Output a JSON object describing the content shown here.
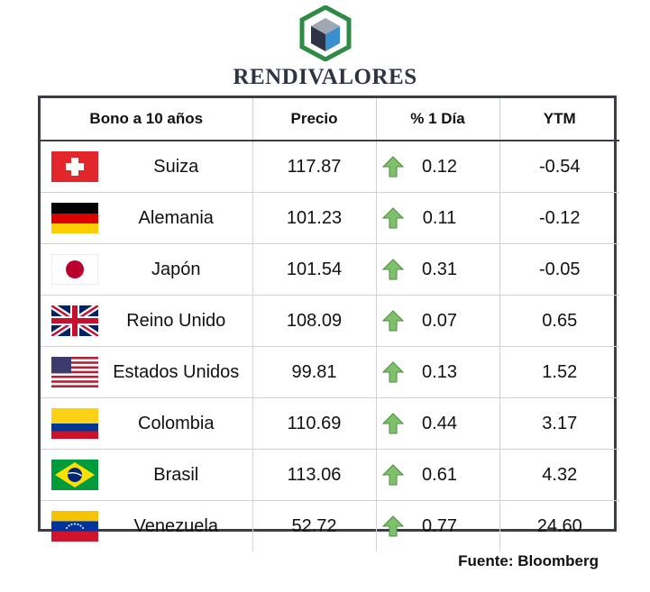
{
  "brand": {
    "name": "RENDIVALORES",
    "logo_icon": "cube-hexagon-logo"
  },
  "table": {
    "headers": [
      "Bono a 10 años",
      "Precio",
      "% 1 Día",
      "YTM"
    ],
    "rows": [
      {
        "country": "Suiza",
        "flag": "switzerland-flag-icon",
        "price": "117.87",
        "change": "0.12",
        "direction": "up",
        "ytm": "-0.54"
      },
      {
        "country": "Alemania",
        "flag": "germany-flag-icon",
        "price": "101.23",
        "change": "0.11",
        "direction": "up",
        "ytm": "-0.12"
      },
      {
        "country": "Japón",
        "flag": "japan-flag-icon",
        "price": "101.54",
        "change": "0.31",
        "direction": "up",
        "ytm": "-0.05"
      },
      {
        "country": "Reino Unido",
        "flag": "united-kingdom-flag-icon",
        "price": "108.09",
        "change": "0.07",
        "direction": "up",
        "ytm": "0.65"
      },
      {
        "country": "Estados Unidos",
        "flag": "united-states-flag-icon",
        "price": "99.81",
        "change": "0.13",
        "direction": "up",
        "ytm": "1.52"
      },
      {
        "country": "Colombia",
        "flag": "colombia-flag-icon",
        "price": "110.69",
        "change": "0.44",
        "direction": "up",
        "ytm": "3.17"
      },
      {
        "country": "Brasil",
        "flag": "brazil-flag-icon",
        "price": "113.06",
        "change": "0.61",
        "direction": "up",
        "ytm": "4.32"
      },
      {
        "country": "Venezuela",
        "flag": "venezuela-flag-icon",
        "price": "52.72",
        "change": "0.77",
        "direction": "up",
        "ytm": "24.60"
      }
    ]
  },
  "source": "Fuente: Bloomberg",
  "colors": {
    "arrow_up": "#7dc26a",
    "border": "#3a3f47",
    "brand_text": "#2d3544",
    "logo_green": "#2e8b45",
    "logo_blue": "#3a8fd0"
  }
}
